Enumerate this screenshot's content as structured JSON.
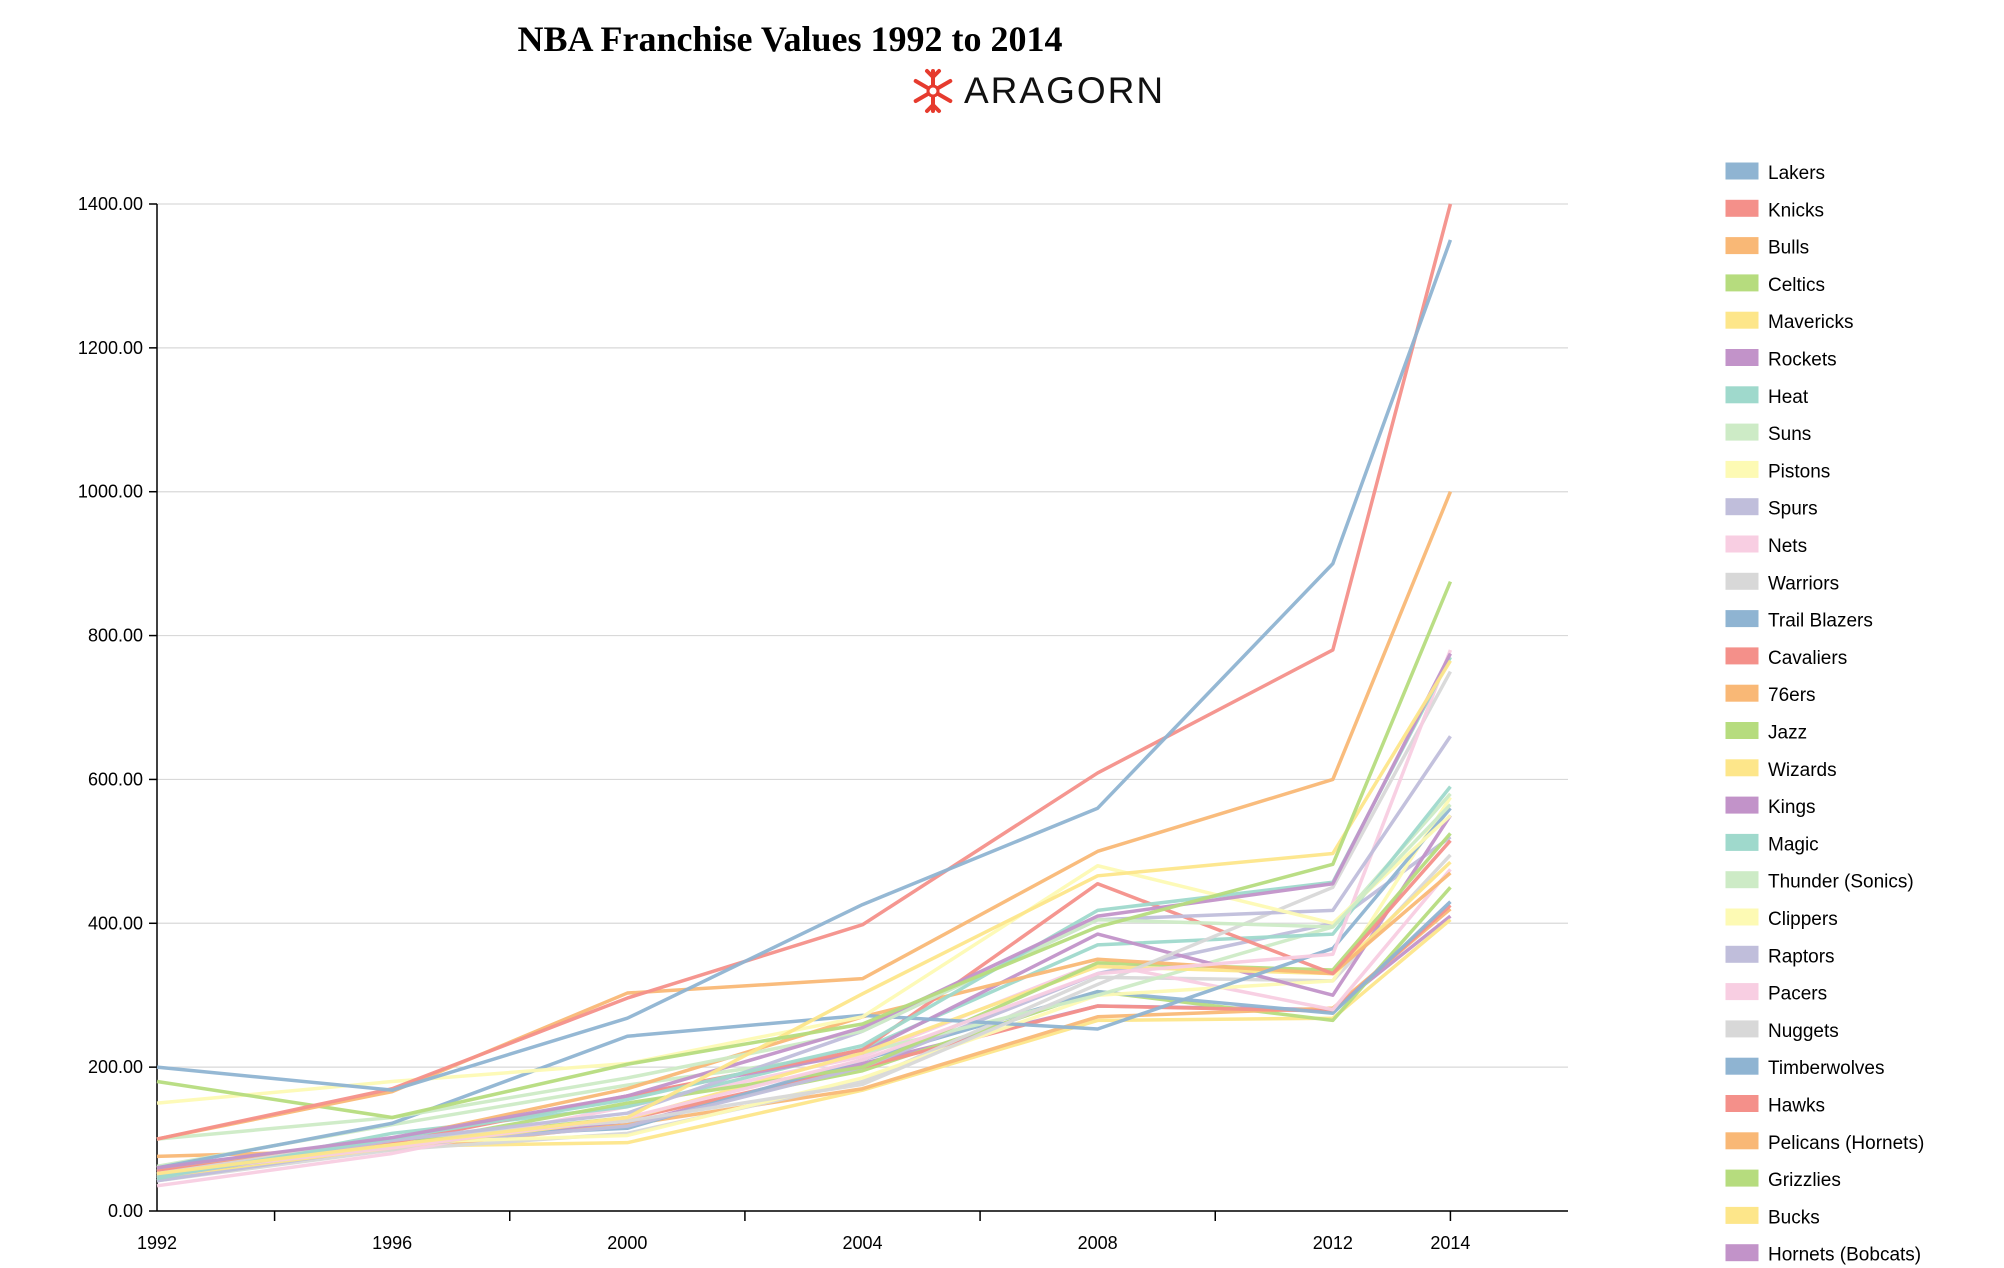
{
  "chart_data": {
    "type": "line",
    "title": "NBA Franchise Values 1992 to 2014",
    "brand": "ARAGORN",
    "xlabel": "",
    "ylabel": "",
    "x": [
      1992,
      1996,
      2000,
      2004,
      2008,
      2012,
      2014
    ],
    "ylim": [
      0,
      1400
    ],
    "yticks": [
      "0.00",
      "200.00",
      "400.00",
      "600.00",
      "800.00",
      "1000.00",
      "1200.00",
      "1400.00"
    ],
    "xticks": [
      "1992",
      "1996",
      "2000",
      "2004",
      "2008",
      "2012",
      "2014"
    ],
    "grid": "horizontal",
    "legend": "right",
    "series": [
      {
        "name": "Lakers",
        "color": "#8fb4d2",
        "values": [
          200,
          168,
          268,
          426,
          560,
          900,
          1350
        ]
      },
      {
        "name": "Knicks",
        "color": "#f4908a",
        "values": [
          100,
          170,
          296,
          398,
          609,
          780,
          1400
        ]
      },
      {
        "name": "Bulls",
        "color": "#f9b876",
        "values": [
          100,
          166,
          303,
          323,
          500,
          600,
          1000
        ]
      },
      {
        "name": "Celtics",
        "color": "#b6dc7e",
        "values": [
          180,
          130,
          204,
          260,
          395,
          482,
          875
        ]
      },
      {
        "name": "Mavericks",
        "color": "#fde68a",
        "values": [
          52,
          92,
          130,
          302,
          466,
          497,
          765
        ]
      },
      {
        "name": "Rockets",
        "color": "#c293c9",
        "values": [
          60,
          102,
          160,
          255,
          410,
          455,
          775
        ]
      },
      {
        "name": "Heat",
        "color": "#9fd9cc",
        "values": [
          47,
          101,
          155,
          230,
          418,
          457,
          770
        ]
      },
      {
        "name": "Suns",
        "color": "#cdebc6",
        "values": [
          100,
          130,
          185,
          250,
          405,
          395,
          565
        ]
      },
      {
        "name": "Pistons",
        "color": "#fdfab4",
        "values": [
          150,
          180,
          205,
          270,
          480,
          400,
          550
        ]
      },
      {
        "name": "Spurs",
        "color": "#c0bedb",
        "values": [
          47,
          98,
          136,
          250,
          405,
          418,
          660
        ]
      },
      {
        "name": "Nets",
        "color": "#f8cee2",
        "values": [
          52,
          88,
          130,
          210,
          330,
          357,
          780
        ]
      },
      {
        "name": "Warriors",
        "color": "#d8d8d8",
        "values": [
          52,
          100,
          125,
          176,
          315,
          450,
          750
        ]
      },
      {
        "name": "Trail Blazers",
        "color": "#8fb4d2",
        "values": [
          60,
          122,
          243,
          272,
          253,
          365,
          560
        ]
      },
      {
        "name": "Cavaliers",
        "color": "#f4908a",
        "values": [
          55,
          95,
          160,
          224,
          455,
          330,
          515
        ]
      },
      {
        "name": "76ers",
        "color": "#f9b876",
        "values": [
          56,
          100,
          170,
          270,
          350,
          330,
          470
        ]
      },
      {
        "name": "Jazz",
        "color": "#b6dc7e",
        "values": [
          50,
          90,
          150,
          200,
          345,
          335,
          525
        ]
      },
      {
        "name": "Wizards",
        "color": "#fde68a",
        "values": [
          48,
          88,
          128,
          220,
          340,
          330,
          485
        ]
      },
      {
        "name": "Kings",
        "color": "#c293c9",
        "values": [
          50,
          96,
          160,
          220,
          385,
          300,
          550
        ]
      },
      {
        "name": "Magic",
        "color": "#9fd9cc",
        "values": [
          45,
          108,
          145,
          225,
          370,
          385,
          590
        ]
      },
      {
        "name": "Thunder (Sonics)",
        "color": "#cdebc6",
        "values": [
          62,
          120,
          175,
          220,
          300,
          395,
          580
        ]
      },
      {
        "name": "Clippers",
        "color": "#fdfab4",
        "values": [
          50,
          95,
          105,
          185,
          300,
          320,
          575
        ]
      },
      {
        "name": "Raptors",
        "color": "#c0bedb",
        "values": [
          42,
          90,
          118,
          200,
          330,
          400,
          520
        ]
      },
      {
        "name": "Pacers",
        "color": "#f8cee2",
        "values": [
          35,
          80,
          145,
          215,
          345,
          280,
          475
        ]
      },
      {
        "name": "Nuggets",
        "color": "#d8d8d8",
        "values": [
          42,
          85,
          108,
          180,
          325,
          320,
          495
        ]
      },
      {
        "name": "Timberwolves",
        "color": "#8fb4d2",
        "values": [
          55,
          100,
          115,
          210,
          305,
          275,
          430
        ]
      },
      {
        "name": "Hawks",
        "color": "#f4908a",
        "values": [
          58,
          92,
          128,
          200,
          285,
          278,
          425
        ]
      },
      {
        "name": "Pelicans (Hornets)",
        "color": "#f9b876",
        "values": [
          76,
          85,
          120,
          170,
          270,
          282,
          420
        ]
      },
      {
        "name": "Grizzlies",
        "color": "#b6dc7e",
        "values": [
          60,
          95,
          130,
          195,
          305,
          265,
          450
        ]
      },
      {
        "name": "Bucks",
        "color": "#fde68a",
        "values": [
          45,
          90,
          95,
          168,
          265,
          268,
          405
        ]
      },
      {
        "name": "Hornets (Bobcats)",
        "color": "#c293c9",
        "values": [
          60,
          100,
          120,
          205,
          285,
          280,
          410
        ]
      }
    ]
  }
}
